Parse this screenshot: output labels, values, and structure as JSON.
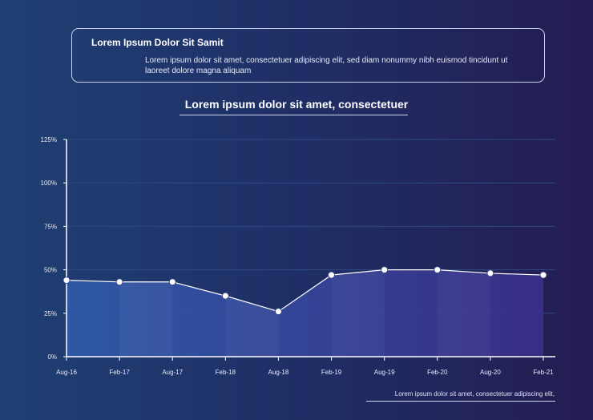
{
  "header_box": {
    "title": "Lorem Ipsum Dolor Sit Samit",
    "text": "Lorem ipsum dolor sit amet, consectetuer adipiscing elit, sed diam nonummy nibh euismod tincidunt ut laoreet dolore magna aliquam"
  },
  "footnote": "Lorem ipsum dolor sit amet, consectetuer adipiscing elit,",
  "chart_data": {
    "type": "area",
    "title": "Lorem ipsum dolor sit amet, consectetuer",
    "categories": [
      "Aug-16",
      "Feb-17",
      "Aug-17",
      "Feb-18",
      "Aug-18",
      "Feb-19",
      "Aug-19",
      "Feb-20",
      "Aug-20",
      "Feb-21"
    ],
    "series": [
      {
        "values": [
          44,
          43,
          43,
          35,
          26,
          47,
          50,
          50,
          48,
          47
        ]
      }
    ],
    "y_ticks": [
      "0%",
      "25%",
      "50%",
      "75%",
      "100%",
      "125%"
    ],
    "ylim": [
      0,
      125
    ],
    "xlabel": "",
    "ylabel": "",
    "grid": true,
    "colors": {
      "area_left": "#2f5aa8",
      "area_right": "#3a2e88",
      "line": "#ffffff",
      "grid": "#2e4a82",
      "axis": "#ffffff"
    }
  }
}
